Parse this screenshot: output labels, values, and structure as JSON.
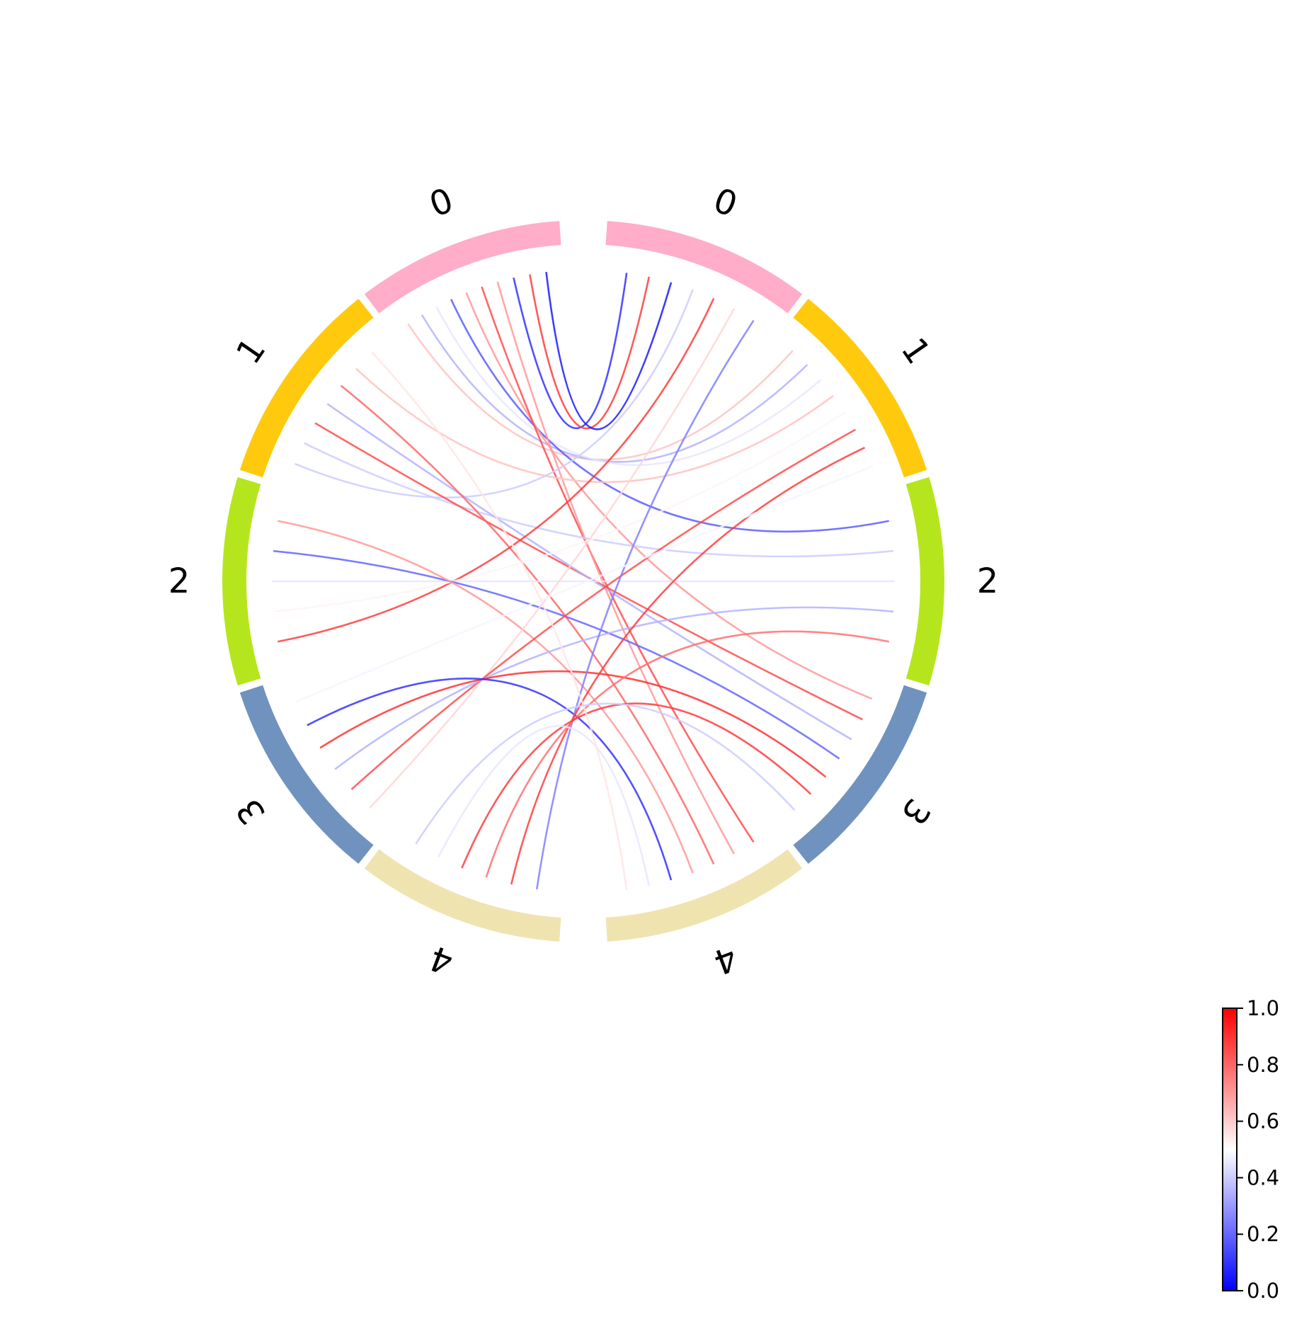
{
  "diagram": {
    "type": "chord",
    "segments": {
      "labels": [
        "0",
        "1",
        "2",
        "3",
        "4"
      ],
      "colors": [
        "#ffadc8",
        "#ffc90e",
        "#b5e61d",
        "#7092be",
        "#efe4b0"
      ]
    },
    "links": [
      {
        "side_a": 0,
        "side_b": 1,
        "value": 0.62
      },
      {
        "side_a": 0,
        "side_b": 1,
        "value": 0.35
      },
      {
        "side_a": 0,
        "side_b": 1,
        "value": 0.45
      },
      {
        "side_a": 0,
        "side_b": 2,
        "value": 0.18
      },
      {
        "side_a": 0,
        "side_b": 3,
        "value": 0.7
      },
      {
        "side_a": 0,
        "side_b": 4,
        "value": 0.85
      },
      {
        "side_a": 0,
        "side_b": 4,
        "value": 0.7
      },
      {
        "side_a": 0,
        "side_b": 0,
        "value": 0.1
      },
      {
        "side_a": 0,
        "side_b": 0,
        "value": 0.88
      },
      {
        "side_a": 0,
        "side_b": 0,
        "value": 0.05
      },
      {
        "side_a": 1,
        "side_b": 0,
        "value": 0.4
      },
      {
        "side_a": 1,
        "side_b": 2,
        "value": 0.4
      },
      {
        "side_a": 1,
        "side_b": 3,
        "value": 0.85
      },
      {
        "side_a": 1,
        "side_b": 3,
        "value": 0.35
      },
      {
        "side_a": 1,
        "side_b": 4,
        "value": 0.8
      },
      {
        "side_a": 1,
        "side_b": 1,
        "value": 0.62
      },
      {
        "side_a": 2,
        "side_b": 0,
        "value": 0.88
      },
      {
        "side_a": 2,
        "side_b": 1,
        "value": 0.52
      },
      {
        "side_a": 2,
        "side_b": 2,
        "value": 0.45
      },
      {
        "side_a": 2,
        "side_b": 3,
        "value": 0.2
      },
      {
        "side_a": 2,
        "side_b": 4,
        "value": 0.7
      },
      {
        "side_a": 3,
        "side_b": 0,
        "value": 0.58
      },
      {
        "side_a": 3,
        "side_b": 1,
        "value": 0.85
      },
      {
        "side_a": 3,
        "side_b": 2,
        "value": 0.35
      },
      {
        "side_a": 3,
        "side_b": 3,
        "value": 0.9
      },
      {
        "side_a": 3,
        "side_b": 4,
        "value": 0.1
      },
      {
        "side_a": 4,
        "side_b": 0,
        "value": 0.25
      },
      {
        "side_a": 4,
        "side_b": 1,
        "value": 0.88
      },
      {
        "side_a": 4,
        "side_b": 2,
        "value": 0.78
      },
      {
        "side_a": 4,
        "side_b": 3,
        "value": 0.88
      },
      {
        "side_a": 4,
        "side_b": 4,
        "value": 0.45
      },
      {
        "side_a": 3,
        "side_b": 1,
        "value": 0.48
      },
      {
        "side_a": 1,
        "side_b": 4,
        "value": 0.55
      },
      {
        "side_a": 4,
        "side_b": 3,
        "value": 0.4
      }
    ]
  },
  "colorbar": {
    "colormap": "bwr",
    "min": 0.0,
    "max": 1.0,
    "tick_labels": [
      "0.0",
      "0.2",
      "0.4",
      "0.6",
      "0.8",
      "1.0"
    ]
  }
}
